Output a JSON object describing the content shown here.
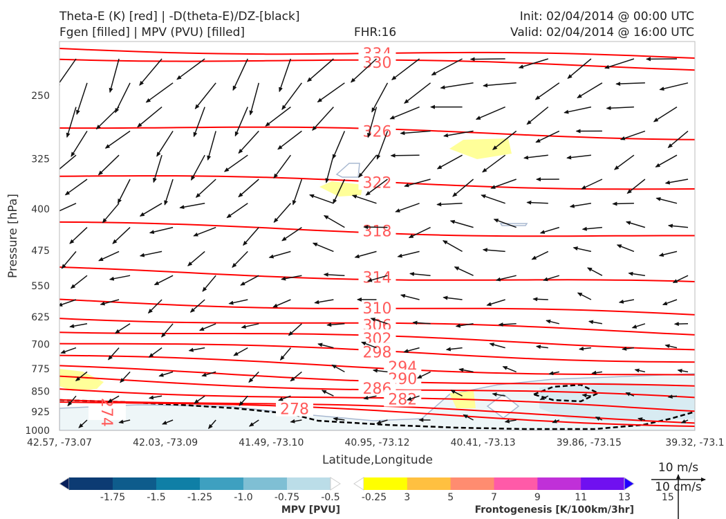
{
  "header": {
    "title_line1": "Theta-E (K) [red] | -D(theta-E)/DZ-[black]",
    "title_line2": "Fgen [filled] | MPV (PVU) [filled]",
    "fhr": "FHR:16",
    "init": "Init: 02/04/2014 @ 00:00 UTC",
    "valid": "Valid: 02/04/2014 @ 16:00 UTC"
  },
  "chart_data": {
    "type": "cross-section",
    "xlabel": "Latitude,Longitude",
    "ylabel": "Pressure [hPa]",
    "x_tick_labels": [
      "42.57, -73.07",
      "42.03, -73.09",
      "41.49, -73.10",
      "40.95, -73.12",
      "40.41, -73.13",
      "39.86, -73.15",
      "39.32, -73.1"
    ],
    "y_ticks": [
      250,
      325,
      400,
      475,
      550,
      625,
      700,
      775,
      850,
      925,
      1000
    ],
    "ylim": [
      1000,
      200
    ],
    "y_scale": "log",
    "theta_e_contours": {
      "color": "#ff0000",
      "labels": [
        {
          "value": "334",
          "x": 0.5,
          "p": 210
        },
        {
          "value": "330",
          "x": 0.5,
          "p": 218
        },
        {
          "value": "326",
          "x": 0.5,
          "p": 290
        },
        {
          "value": "322",
          "x": 0.5,
          "p": 358
        },
        {
          "value": "318",
          "x": 0.5,
          "p": 438
        },
        {
          "value": "314",
          "x": 0.5,
          "p": 530
        },
        {
          "value": "310",
          "x": 0.5,
          "p": 602
        },
        {
          "value": "306",
          "x": 0.5,
          "p": 646
        },
        {
          "value": "302",
          "x": 0.5,
          "p": 683
        },
        {
          "value": "298",
          "x": 0.5,
          "p": 722
        },
        {
          "value": "294",
          "x": 0.54,
          "p": 768
        },
        {
          "value": "290",
          "x": 0.54,
          "p": 807
        },
        {
          "value": "286",
          "x": 0.5,
          "p": 840
        },
        {
          "value": "282",
          "x": 0.54,
          "p": 878
        },
        {
          "value": "278",
          "x": 0.37,
          "p": 914
        },
        {
          "value": "274",
          "x": 0.075,
          "p": 928
        }
      ]
    },
    "mpv_colorbar": {
      "label": "MPV [PVU]",
      "ticks": [
        "-1.75",
        "-1.5",
        "-1.25",
        "-1.0",
        "-0.75",
        "-0.5",
        "-0.25"
      ],
      "colors": [
        "#08205a",
        "#0c3b73",
        "#0e5c8c",
        "#0f7fa6",
        "#3ea0c0",
        "#7fbfd4",
        "#bbdde8",
        "#ffffff"
      ]
    },
    "fgen_colorbar": {
      "label": "Frontogenesis [K/100km/3hr]",
      "ticks": [
        "3",
        "5",
        "7",
        "9",
        "11",
        "13",
        "15"
      ],
      "colors": [
        "#ffffff",
        "#ffff00",
        "#ffc040",
        "#ff8c70",
        "#ff5aa8",
        "#c030d8",
        "#7010f0",
        "#2000ff"
      ]
    },
    "reference_vector": {
      "u_label": "10 m/s",
      "w_label": "10 cm/s"
    }
  }
}
